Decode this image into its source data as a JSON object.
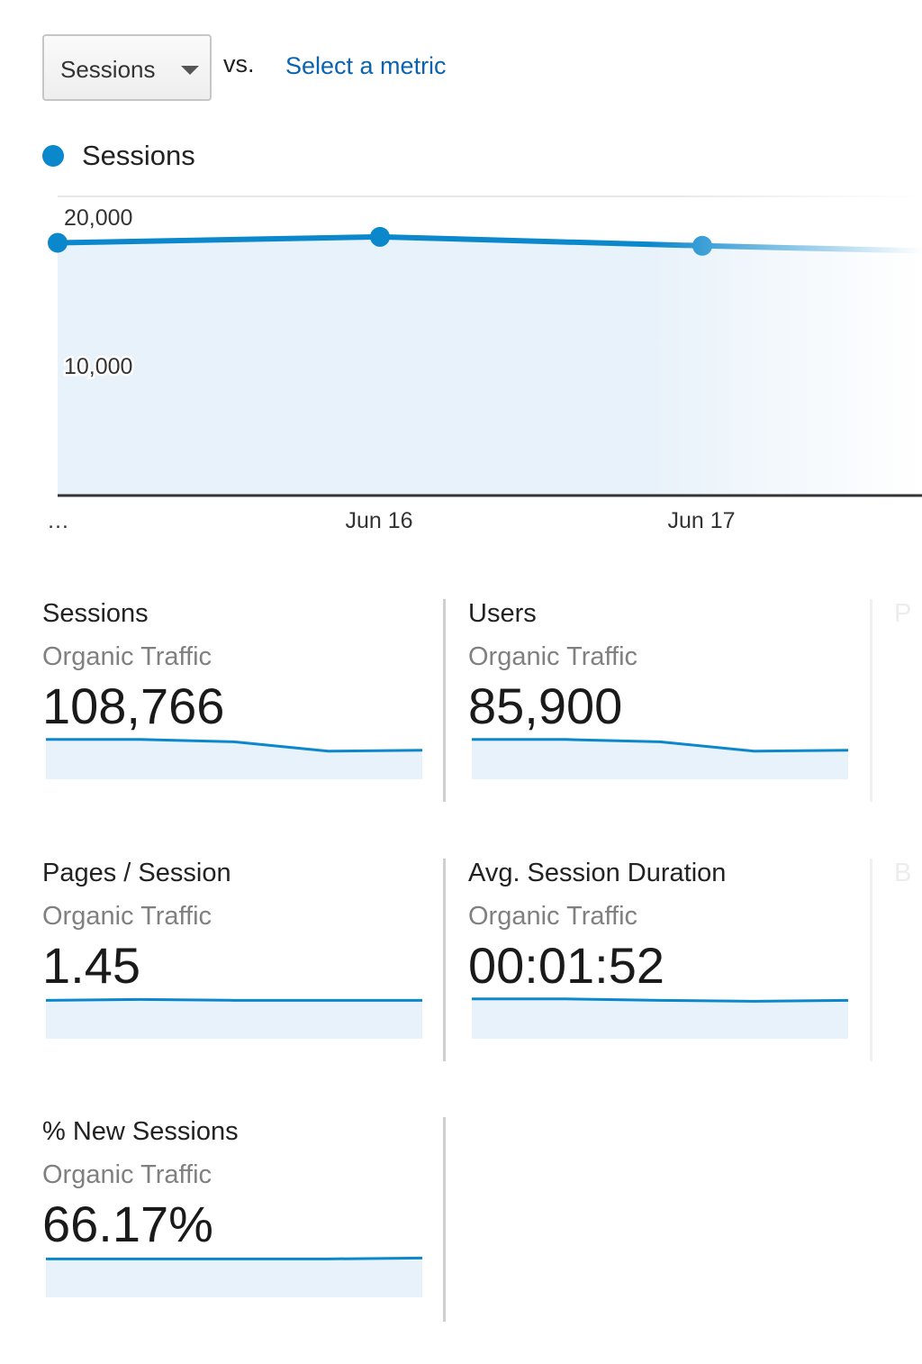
{
  "selector": {
    "primary_metric": "Sessions",
    "vs_label": "vs.",
    "secondary_link": "Select a metric"
  },
  "legend": {
    "label": "Sessions",
    "color": "#0b87cc"
  },
  "chart_data": {
    "type": "line",
    "series": [
      {
        "name": "Sessions",
        "values": [
          17000,
          17400,
          16800,
          16300
        ]
      }
    ],
    "x": [
      "…",
      "Jun 16",
      "Jun 17",
      ""
    ],
    "yticks": [
      "20,000",
      "10,000"
    ],
    "ylim": [
      0,
      20000
    ],
    "fill": "area",
    "grid": true,
    "color": "#0b87cc"
  },
  "cards": [
    {
      "title": "Sessions",
      "segment": "Organic Traffic",
      "value": "108,766",
      "spark": [
        0.85,
        0.85,
        0.8,
        0.6,
        0.62
      ]
    },
    {
      "title": "Users",
      "segment": "Organic Traffic",
      "value": "85,900",
      "spark": [
        0.85,
        0.85,
        0.8,
        0.6,
        0.62
      ]
    },
    {
      "title": "Pages / Session",
      "segment": "Organic Traffic",
      "value": "1.45",
      "spark": [
        0.82,
        0.84,
        0.82,
        0.82,
        0.82
      ]
    },
    {
      "title": "Avg. Session Duration",
      "segment": "Organic Traffic",
      "value": "00:01:52",
      "spark": [
        0.85,
        0.85,
        0.82,
        0.8,
        0.82
      ]
    },
    {
      "title": "% New Sessions",
      "segment": "Organic Traffic",
      "value": "66.17%",
      "spark": [
        0.82,
        0.82,
        0.82,
        0.82,
        0.84
      ]
    }
  ],
  "ghost_cards": [
    {
      "letter": "P"
    },
    {
      "letter": "B"
    }
  ]
}
